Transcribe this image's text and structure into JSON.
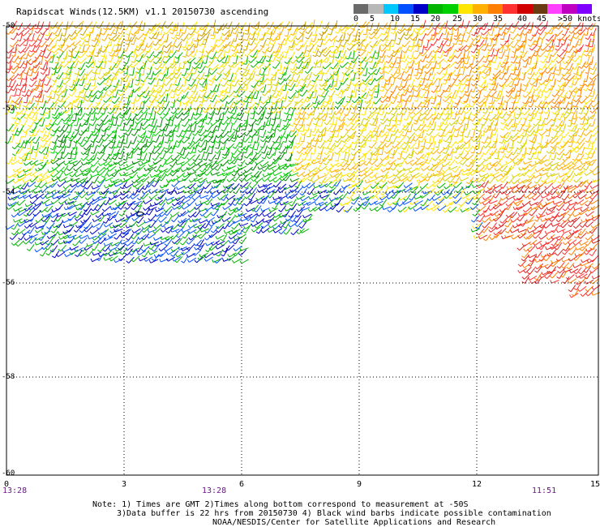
{
  "title": "Rapidscat Winds(12.5KM) v1.1 20150730 ascending",
  "color_scale": {
    "colors": [
      "#6a6a6a",
      "#b8b8b8",
      "#00c8ff",
      "#0050ff",
      "#0000c8",
      "#00b400",
      "#00d000",
      "#ffe600",
      "#ffb000",
      "#ff8000",
      "#ff3030",
      "#d00000",
      "#6a3a10",
      "#ff40ff",
      "#c000c0",
      "#8000ff"
    ],
    "labels": [
      "0",
      "5",
      "10",
      "15",
      "20",
      "25",
      "30",
      "35",
      "40",
      "45",
      ">50 knots"
    ]
  },
  "y_labels": [
    "-50",
    "-52",
    "-54",
    "-56",
    "-58",
    "-60"
  ],
  "x_labels": [
    "0",
    "3",
    "6",
    "9",
    "12",
    "15"
  ],
  "time_labels": [
    "13:28",
    "13:28",
    "11:51"
  ],
  "notes": [
    "Note: 1) Times are GMT 2)Times along bottom correspond to measurement at -50S",
    "3)Data buffer is 22 hrs from 20150730 4) Black wind barbs indicate possible contamination",
    "NOAA/NESDIS/Center for Satellite Applications and Research"
  ]
}
